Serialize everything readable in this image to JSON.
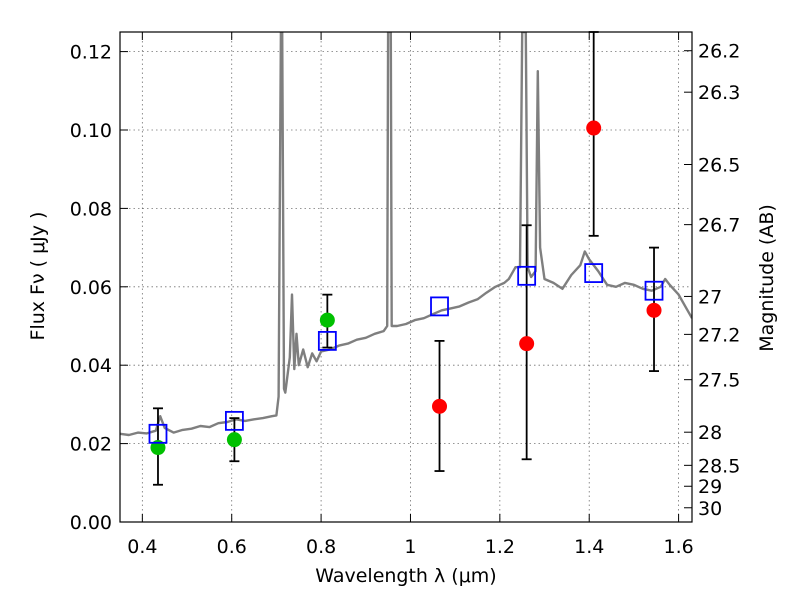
{
  "chart_data": {
    "type": "scatter",
    "xlabel": "Wavelength  λ (μm)",
    "ylabel": "Flux  Fν  ( μJy )",
    "y2label": "Magnitude (AB)",
    "xlim": [
      0.35,
      1.63
    ],
    "ylim": [
      0.0,
      0.125
    ],
    "xticks": [
      0.4,
      0.6,
      0.8,
      1.0,
      1.2,
      1.4,
      1.6
    ],
    "xtick_labels": [
      "0.4",
      "0.6",
      "0.8",
      "1",
      "1.2",
      "1.4",
      "1.6"
    ],
    "yticks": [
      0.0,
      0.02,
      0.04,
      0.06,
      0.08,
      0.1,
      0.12
    ],
    "ytick_labels": [
      "0.00",
      "0.02",
      "0.04",
      "0.06",
      "0.08",
      "0.10",
      "0.12"
    ],
    "mag_ticks": [
      "26.2",
      "26.3",
      "26.5",
      "26.7",
      "27",
      "27.2",
      "27.5",
      "28",
      "28.5",
      "29",
      "30"
    ],
    "grid": true,
    "colors": {
      "spectrum": "#7f7f7f",
      "green": "#00c000",
      "red": "#ff0000",
      "model": "#0000ff",
      "errorbar": "#000000"
    },
    "spectrum": [
      [
        0.35,
        0.0225
      ],
      [
        0.37,
        0.0222
      ],
      [
        0.39,
        0.0228
      ],
      [
        0.41,
        0.0226
      ],
      [
        0.43,
        0.0233
      ],
      [
        0.44,
        0.027
      ],
      [
        0.45,
        0.024
      ],
      [
        0.47,
        0.0228
      ],
      [
        0.49,
        0.0235
      ],
      [
        0.51,
        0.0238
      ],
      [
        0.53,
        0.0245
      ],
      [
        0.55,
        0.0242
      ],
      [
        0.57,
        0.0252
      ],
      [
        0.59,
        0.0255
      ],
      [
        0.61,
        0.0262
      ],
      [
        0.63,
        0.0258
      ],
      [
        0.65,
        0.0262
      ],
      [
        0.67,
        0.0265
      ],
      [
        0.69,
        0.027
      ],
      [
        0.7,
        0.0272
      ],
      [
        0.705,
        0.032
      ],
      [
        0.71,
        0.125
      ],
      [
        0.713,
        0.125
      ],
      [
        0.717,
        0.034
      ],
      [
        0.72,
        0.033
      ],
      [
        0.73,
        0.042
      ],
      [
        0.735,
        0.058
      ],
      [
        0.74,
        0.039
      ],
      [
        0.745,
        0.048
      ],
      [
        0.75,
        0.04
      ],
      [
        0.76,
        0.044
      ],
      [
        0.77,
        0.0395
      ],
      [
        0.78,
        0.043
      ],
      [
        0.79,
        0.041
      ],
      [
        0.8,
        0.0435
      ],
      [
        0.82,
        0.044
      ],
      [
        0.84,
        0.045
      ],
      [
        0.86,
        0.0455
      ],
      [
        0.88,
        0.0465
      ],
      [
        0.9,
        0.047
      ],
      [
        0.92,
        0.048
      ],
      [
        0.94,
        0.0487
      ],
      [
        0.948,
        0.05
      ],
      [
        0.95,
        0.125
      ],
      [
        0.956,
        0.125
      ],
      [
        0.958,
        0.05
      ],
      [
        0.97,
        0.05
      ],
      [
        0.99,
        0.0505
      ],
      [
        1.01,
        0.0515
      ],
      [
        1.03,
        0.052
      ],
      [
        1.05,
        0.053
      ],
      [
        1.07,
        0.054
      ],
      [
        1.09,
        0.0545
      ],
      [
        1.11,
        0.055
      ],
      [
        1.13,
        0.056
      ],
      [
        1.15,
        0.0568
      ],
      [
        1.17,
        0.0585
      ],
      [
        1.19,
        0.06
      ],
      [
        1.21,
        0.061
      ],
      [
        1.22,
        0.062
      ],
      [
        1.235,
        0.065
      ],
      [
        1.245,
        0.065
      ],
      [
        1.25,
        0.125
      ],
      [
        1.258,
        0.125
      ],
      [
        1.262,
        0.065
      ],
      [
        1.27,
        0.0625
      ],
      [
        1.28,
        0.064
      ],
      [
        1.285,
        0.115
      ],
      [
        1.29,
        0.07
      ],
      [
        1.3,
        0.062
      ],
      [
        1.32,
        0.061
      ],
      [
        1.34,
        0.0595
      ],
      [
        1.36,
        0.063
      ],
      [
        1.38,
        0.0655
      ],
      [
        1.39,
        0.069
      ],
      [
        1.4,
        0.067
      ],
      [
        1.42,
        0.064
      ],
      [
        1.44,
        0.0605
      ],
      [
        1.46,
        0.06
      ],
      [
        1.48,
        0.061
      ],
      [
        1.5,
        0.0605
      ],
      [
        1.52,
        0.0595
      ],
      [
        1.54,
        0.059
      ],
      [
        1.56,
        0.06
      ],
      [
        1.57,
        0.062
      ],
      [
        1.58,
        0.0605
      ],
      [
        1.6,
        0.058
      ],
      [
        1.62,
        0.054
      ],
      [
        1.63,
        0.052
      ]
    ],
    "green_points": [
      {
        "x": 0.435,
        "y": 0.019,
        "yerr_low": 0.0095,
        "yerr_high": 0.029
      },
      {
        "x": 0.606,
        "y": 0.021,
        "yerr_low": 0.0155,
        "yerr_high": 0.0265
      },
      {
        "x": 0.814,
        "y": 0.0515,
        "yerr_low": 0.0445,
        "yerr_high": 0.058
      }
    ],
    "red_points": [
      {
        "x": 1.065,
        "y": 0.0295,
        "yerr_low": 0.013,
        "yerr_high": 0.0462
      },
      {
        "x": 1.26,
        "y": 0.0455,
        "yerr_low": 0.016,
        "yerr_high": 0.0757
      },
      {
        "x": 1.41,
        "y": 0.1005,
        "yerr_low": 0.073,
        "yerr_high": 0.125
      },
      {
        "x": 1.545,
        "y": 0.054,
        "yerr_low": 0.0385,
        "yerr_high": 0.07
      }
    ],
    "model_points": [
      {
        "x": 0.435,
        "y": 0.0225
      },
      {
        "x": 0.606,
        "y": 0.0258
      },
      {
        "x": 0.814,
        "y": 0.0462
      },
      {
        "x": 1.065,
        "y": 0.055
      },
      {
        "x": 1.26,
        "y": 0.0628
      },
      {
        "x": 1.41,
        "y": 0.0635
      },
      {
        "x": 1.545,
        "y": 0.059
      }
    ]
  }
}
